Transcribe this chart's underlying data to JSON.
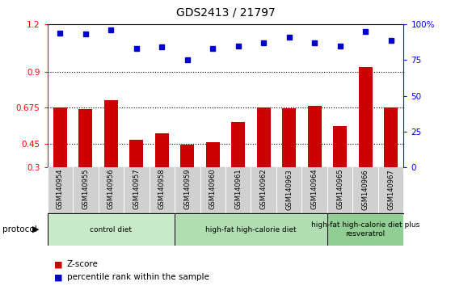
{
  "title": "GDS2413 / 21797",
  "categories": [
    "GSM140954",
    "GSM140955",
    "GSM140956",
    "GSM140957",
    "GSM140958",
    "GSM140959",
    "GSM140960",
    "GSM140961",
    "GSM140962",
    "GSM140963",
    "GSM140964",
    "GSM140965",
    "GSM140966",
    "GSM140967"
  ],
  "zscore": [
    0.675,
    0.665,
    0.72,
    0.475,
    0.515,
    0.445,
    0.46,
    0.585,
    0.675,
    0.67,
    0.685,
    0.56,
    0.93,
    0.675
  ],
  "percentile": [
    94,
    93,
    96,
    83,
    84,
    75,
    83,
    85,
    87,
    91,
    87,
    85,
    95,
    89
  ],
  "ylim_left": [
    0.3,
    1.2
  ],
  "ylim_right": [
    0,
    100
  ],
  "yticks_left": [
    0.3,
    0.45,
    0.675,
    0.9,
    1.2
  ],
  "ytick_labels_left": [
    "0.3",
    "0.45",
    "0.675",
    "0.9",
    "1.2"
  ],
  "yticks_right": [
    0,
    25,
    50,
    75,
    100
  ],
  "ytick_labels_right": [
    "0",
    "25",
    "50",
    "75",
    "100%"
  ],
  "groups": [
    {
      "label": "control diet",
      "start": 0,
      "end": 5,
      "color": "#c8eac9"
    },
    {
      "label": "high-fat high-calorie diet",
      "start": 5,
      "end": 11,
      "color": "#b0ddb2"
    },
    {
      "label": "high-fat high-calorie diet plus\nresveratrol",
      "start": 11,
      "end": 14,
      "color": "#90ce93"
    }
  ],
  "bar_color": "#cc0000",
  "dot_color": "#0000cc",
  "legend_zscore": "Z-score",
  "legend_percentile": "percentile rank within the sample",
  "grid_yticks": [
    0.45,
    0.675,
    0.9
  ],
  "bar_bottom": 0.3
}
